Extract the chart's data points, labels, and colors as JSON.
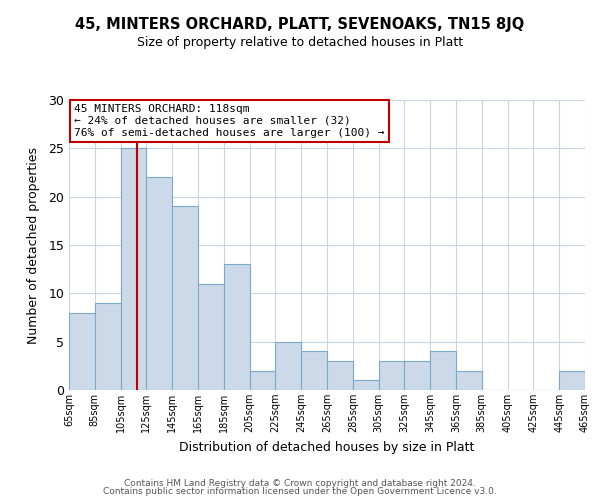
{
  "title": "45, MINTERS ORCHARD, PLATT, SEVENOAKS, TN15 8JQ",
  "subtitle": "Size of property relative to detached houses in Platt",
  "xlabel": "Distribution of detached houses by size in Platt",
  "ylabel": "Number of detached properties",
  "bar_color": "#ccd9e8",
  "bar_edge_color": "#7aaac8",
  "background_color": "#ffffff",
  "grid_color": "#c5d5e5",
  "marker_line_color": "#c00000",
  "marker_value": 118,
  "annotation_title": "45 MINTERS ORCHARD: 118sqm",
  "annotation_line1": "← 24% of detached houses are smaller (32)",
  "annotation_line2": "76% of semi-detached houses are larger (100) →",
  "annotation_box_color": "#ffffff",
  "annotation_box_edge": "#c00000",
  "footer1": "Contains HM Land Registry data © Crown copyright and database right 2024.",
  "footer2": "Contains public sector information licensed under the Open Government Licence v3.0.",
  "bins": [
    65,
    85,
    105,
    125,
    145,
    165,
    185,
    205,
    225,
    245,
    265,
    285,
    305,
    325,
    345,
    365,
    385,
    405,
    425,
    445,
    465
  ],
  "counts": [
    8,
    9,
    25,
    22,
    19,
    11,
    13,
    2,
    5,
    4,
    3,
    1,
    3,
    3,
    4,
    2,
    0,
    0,
    0,
    2
  ],
  "ylim": [
    0,
    30
  ],
  "yticks": [
    0,
    5,
    10,
    15,
    20,
    25,
    30
  ],
  "title_fontsize": 10.5,
  "subtitle_fontsize": 9,
  "xlabel_fontsize": 9,
  "ylabel_fontsize": 9,
  "xtick_fontsize": 7,
  "ytick_fontsize": 9,
  "footer_fontsize": 6.5
}
